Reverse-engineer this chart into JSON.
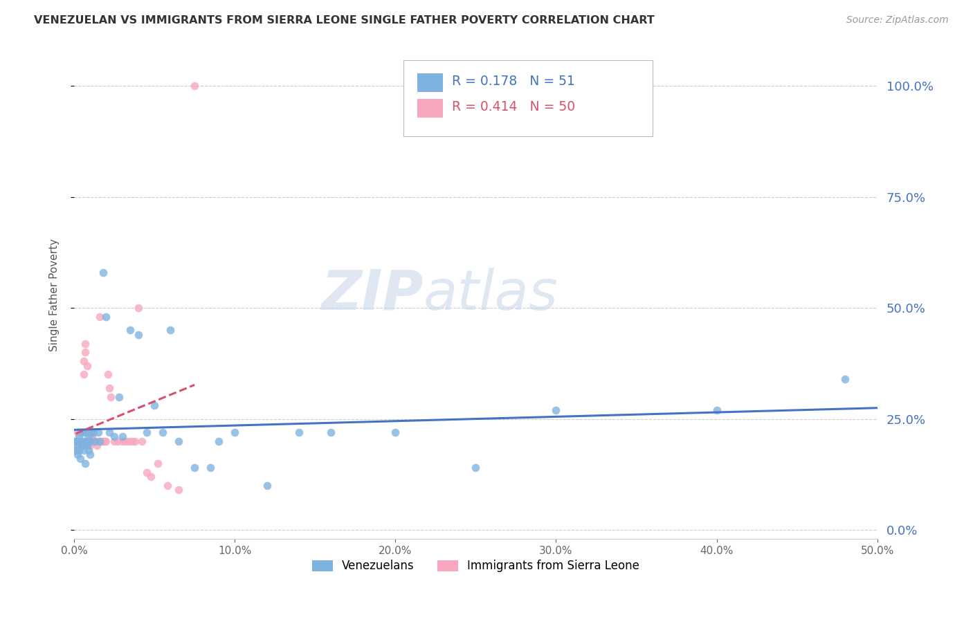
{
  "title": "VENEZUELAN VS IMMIGRANTS FROM SIERRA LEONE SINGLE FATHER POVERTY CORRELATION CHART",
  "source": "Source: ZipAtlas.com",
  "ylabel": "Single Father Poverty",
  "legend_venezuelans": "Venezuelans",
  "legend_sierraleone": "Immigrants from Sierra Leone",
  "r_venezuelan": 0.178,
  "n_venezuelan": 51,
  "r_sierraleone": 0.414,
  "n_sierraleone": 50,
  "color_venezuelan": "#7eb3e0",
  "color_sierraleone": "#f7a8be",
  "trendline_venezuelan": "#4472c4",
  "trendline_sierraleone": "#d9506e",
  "right_axis_color": "#4472c4",
  "xlim": [
    0.0,
    0.5
  ],
  "ylim": [
    -0.02,
    1.08
  ],
  "xticks": [
    0.0,
    0.1,
    0.2,
    0.3,
    0.4,
    0.5
  ],
  "yticks": [
    0.0,
    0.25,
    0.5,
    0.75,
    1.0
  ],
  "venezuelan_x": [
    0.001,
    0.001,
    0.002,
    0.002,
    0.002,
    0.003,
    0.003,
    0.004,
    0.004,
    0.005,
    0.005,
    0.006,
    0.006,
    0.007,
    0.007,
    0.008,
    0.008,
    0.009,
    0.009,
    0.01,
    0.01,
    0.011,
    0.012,
    0.013,
    0.015,
    0.016,
    0.018,
    0.02,
    0.022,
    0.025,
    0.028,
    0.03,
    0.035,
    0.04,
    0.045,
    0.05,
    0.055,
    0.06,
    0.065,
    0.075,
    0.085,
    0.09,
    0.1,
    0.12,
    0.14,
    0.16,
    0.2,
    0.25,
    0.3,
    0.4,
    0.48
  ],
  "venezuelan_y": [
    0.2,
    0.18,
    0.2,
    0.19,
    0.17,
    0.21,
    0.18,
    0.2,
    0.16,
    0.22,
    0.19,
    0.2,
    0.18,
    0.22,
    0.15,
    0.19,
    0.2,
    0.21,
    0.18,
    0.2,
    0.17,
    0.22,
    0.22,
    0.2,
    0.22,
    0.2,
    0.58,
    0.48,
    0.22,
    0.21,
    0.3,
    0.21,
    0.45,
    0.44,
    0.22,
    0.28,
    0.22,
    0.45,
    0.2,
    0.14,
    0.14,
    0.2,
    0.22,
    0.1,
    0.22,
    0.22,
    0.22,
    0.14,
    0.27,
    0.27,
    0.34
  ],
  "sierraleone_x": [
    0.001,
    0.001,
    0.002,
    0.002,
    0.003,
    0.003,
    0.004,
    0.004,
    0.005,
    0.005,
    0.006,
    0.006,
    0.007,
    0.007,
    0.007,
    0.008,
    0.008,
    0.009,
    0.009,
    0.01,
    0.01,
    0.011,
    0.011,
    0.012,
    0.013,
    0.014,
    0.015,
    0.016,
    0.017,
    0.018,
    0.019,
    0.02,
    0.021,
    0.022,
    0.023,
    0.025,
    0.027,
    0.03,
    0.032,
    0.034,
    0.036,
    0.038,
    0.04,
    0.042,
    0.045,
    0.048,
    0.052,
    0.058,
    0.065,
    0.075
  ],
  "sierraleone_y": [
    0.2,
    0.18,
    0.22,
    0.2,
    0.2,
    0.18,
    0.22,
    0.19,
    0.2,
    0.19,
    0.38,
    0.35,
    0.42,
    0.4,
    0.2,
    0.2,
    0.37,
    0.2,
    0.22,
    0.2,
    0.19,
    0.2,
    0.21,
    0.2,
    0.2,
    0.19,
    0.2,
    0.48,
    0.2,
    0.2,
    0.2,
    0.2,
    0.35,
    0.32,
    0.3,
    0.2,
    0.2,
    0.2,
    0.2,
    0.2,
    0.2,
    0.2,
    0.5,
    0.2,
    0.13,
    0.12,
    0.15,
    0.1,
    0.09,
    1.0
  ],
  "watermark_zip": "ZIP",
  "watermark_atlas": "atlas",
  "background_color": "#ffffff"
}
